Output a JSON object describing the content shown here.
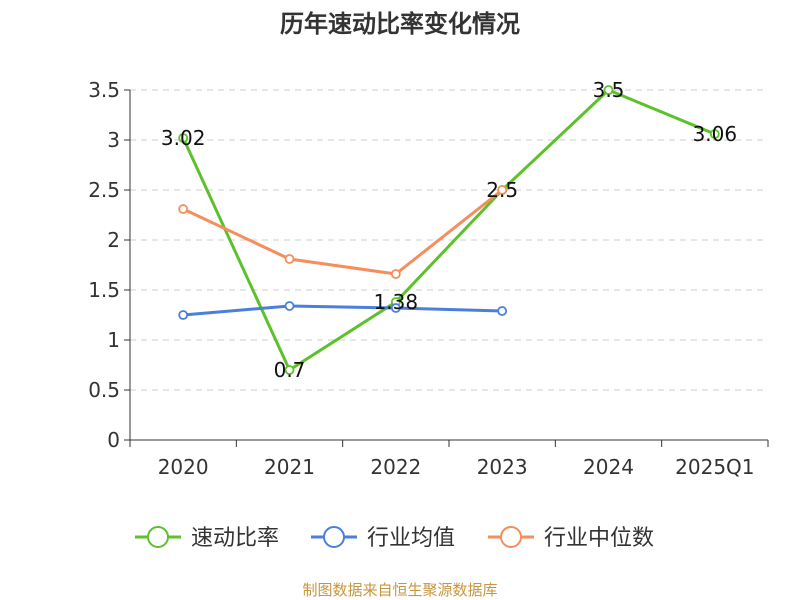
{
  "chart_data": {
    "type": "line",
    "title": "历年速动比率变化情况",
    "categories": [
      "2020",
      "2021",
      "2022",
      "2023",
      "2024",
      "2025Q1"
    ],
    "yticks": [
      "0",
      "0.5",
      "1",
      "1.5",
      "2",
      "2.5",
      "3",
      "3.5"
    ],
    "ylim": [
      0,
      3.5
    ],
    "grid": true,
    "legend_position": "bottom",
    "series": [
      {
        "name": "速动比率",
        "color": "#5cc12b",
        "values": [
          3.02,
          0.7,
          1.38,
          2.5,
          3.5,
          3.06
        ],
        "labels": [
          "3.02",
          "0.7",
          "1.38",
          "2.5",
          "3.5",
          "3.06"
        ]
      },
      {
        "name": "行业均值",
        "color": "#4a7fdc",
        "values": [
          1.25,
          1.34,
          1.32,
          1.29,
          null,
          null
        ],
        "labels": []
      },
      {
        "name": "行业中位数",
        "color": "#f58d5c",
        "values": [
          2.31,
          1.81,
          1.66,
          2.5,
          null,
          null
        ],
        "labels": []
      }
    ]
  },
  "source_note": "制图数据来自恒生聚源数据库"
}
